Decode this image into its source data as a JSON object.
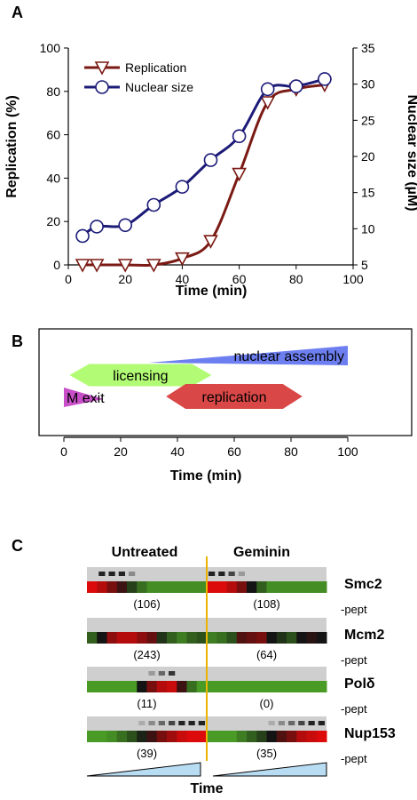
{
  "panel_a": {
    "label": "A",
    "chart_data": {
      "type": "line",
      "xlabel": "Time (min)",
      "ylabel_left": "Replication (%)",
      "ylabel_right": "Nuclear size (µM)",
      "xlim": [
        0,
        100
      ],
      "ylim_left": [
        0,
        100
      ],
      "ylim_right": [
        5,
        35
      ],
      "x_ticks": [
        "0",
        "20",
        "40",
        "60",
        "80",
        "100"
      ],
      "y_ticks_left": [
        "0",
        "20",
        "40",
        "60",
        "80",
        "100"
      ],
      "y_ticks_right": [
        "5",
        "10",
        "15",
        "20",
        "25",
        "30",
        "35"
      ],
      "legend_position": "top-left",
      "series": [
        {
          "name": "Replication",
          "axis": "left",
          "marker": "triangle-down",
          "color": "#7b1a14",
          "x": [
            5,
            10,
            20,
            30,
            40,
            50,
            60,
            70,
            80,
            90
          ],
          "y": [
            0,
            0,
            0,
            0,
            3,
            11,
            42,
            75,
            81,
            83
          ]
        },
        {
          "name": "Nuclear size",
          "axis": "right",
          "marker": "circle",
          "color": "#1c1b78",
          "x": [
            5,
            10,
            20,
            30,
            40,
            50,
            60,
            70,
            80,
            90
          ],
          "y": [
            9.0,
            10.3,
            10.5,
            13.3,
            15.8,
            19.5,
            22.8,
            29.3,
            29.7,
            30.7
          ]
        }
      ]
    }
  },
  "panel_b": {
    "label": "B",
    "xlabel": "Time (min)",
    "x_ticks": [
      "0",
      "20",
      "40",
      "60",
      "80",
      "100"
    ],
    "phases": [
      {
        "label": "nuclear assembly",
        "start": 30,
        "end": 100,
        "color": "#6d7ff0"
      },
      {
        "label": "licensing",
        "start": 2,
        "end": 52,
        "color": "#b2fb74"
      },
      {
        "label": "M exit",
        "start": 0,
        "end": 14,
        "color": "#c84fc8"
      },
      {
        "label": "replication",
        "start": 36,
        "end": 84,
        "color": "#d94747"
      }
    ]
  },
  "panel_c": {
    "label": "C",
    "conditions": [
      "Untreated",
      "Geminin"
    ],
    "proteins": [
      {
        "name": "Smc2",
        "suffix": "-pept",
        "counts": [
          "(106)",
          "(108)"
        ]
      },
      {
        "name": "Mcm2",
        "suffix": "-pept",
        "counts": [
          "(243)",
          "(64)"
        ]
      },
      {
        "name": "Polδ",
        "suffix": "-pept",
        "counts": [
          "(11)",
          "(0)"
        ]
      },
      {
        "name": "Nup153",
        "suffix": "-pept",
        "counts": [
          "(39)",
          "(35)"
        ]
      }
    ],
    "time_label": "Time",
    "divider_color": "#e8b400"
  }
}
